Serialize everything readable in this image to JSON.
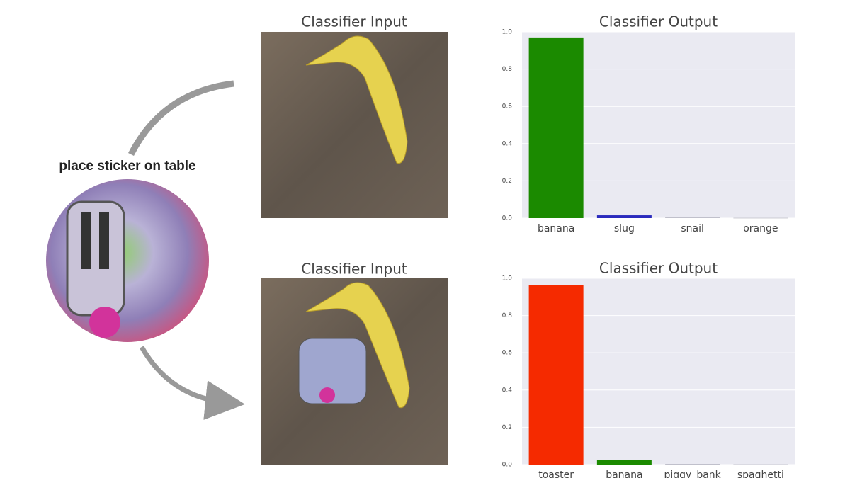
{
  "label": "place sticker on table",
  "images": [
    {
      "title": "Classifier Input"
    },
    {
      "title": "Classifier Input"
    }
  ],
  "chart_data": [
    {
      "type": "bar",
      "title": "Classifier Output",
      "categories": [
        "banana",
        "slug",
        "snail",
        "orange"
      ],
      "values": [
        0.97,
        0.015,
        0.002,
        0.001
      ],
      "colors": [
        "#1b8a00",
        "#2b2bbd",
        "#9a9aa8",
        "#9a9aa8"
      ],
      "ylim": [
        0,
        1
      ],
      "yticks": [
        {
          "value": 0,
          "label": "0.0"
        },
        0.2,
        0.4,
        0.6,
        0.8,
        {
          "value": 1,
          "label": "1.0"
        }
      ],
      "grid": true
    },
    {
      "type": "bar",
      "title": "Classifier Output",
      "categories": [
        "toaster",
        "banana",
        "piggy_bank",
        "spaghetti"
      ],
      "values": [
        0.965,
        0.025,
        0.002,
        0.001
      ],
      "colors": [
        "#f52a00",
        "#1b8a00",
        "#9a9aa8",
        "#9a9aa8"
      ],
      "ylim": [
        0,
        1
      ],
      "yticks": [
        {
          "value": 0,
          "label": "0.0"
        },
        0.2,
        0.4,
        0.6,
        0.8,
        {
          "value": 1,
          "label": "1.0"
        }
      ],
      "grid": true
    }
  ]
}
